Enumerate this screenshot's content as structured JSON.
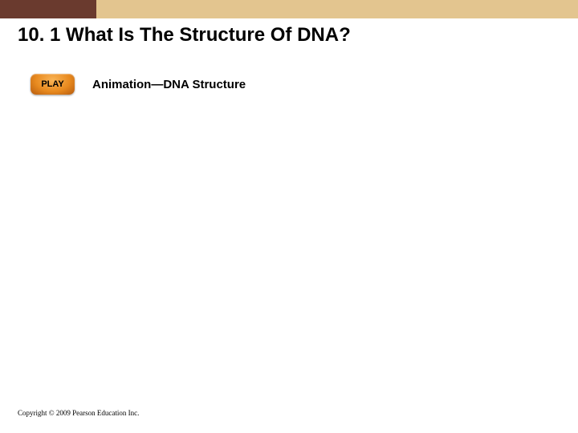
{
  "header": {
    "left_color": "#6a3a2e",
    "right_color": "#e3c58f"
  },
  "title": "10. 1 What Is The Structure Of DNA?",
  "play": {
    "button_label": "PLAY",
    "text": "Animation—DNA Structure"
  },
  "copyright": "Copyright © 2009 Pearson Education Inc."
}
